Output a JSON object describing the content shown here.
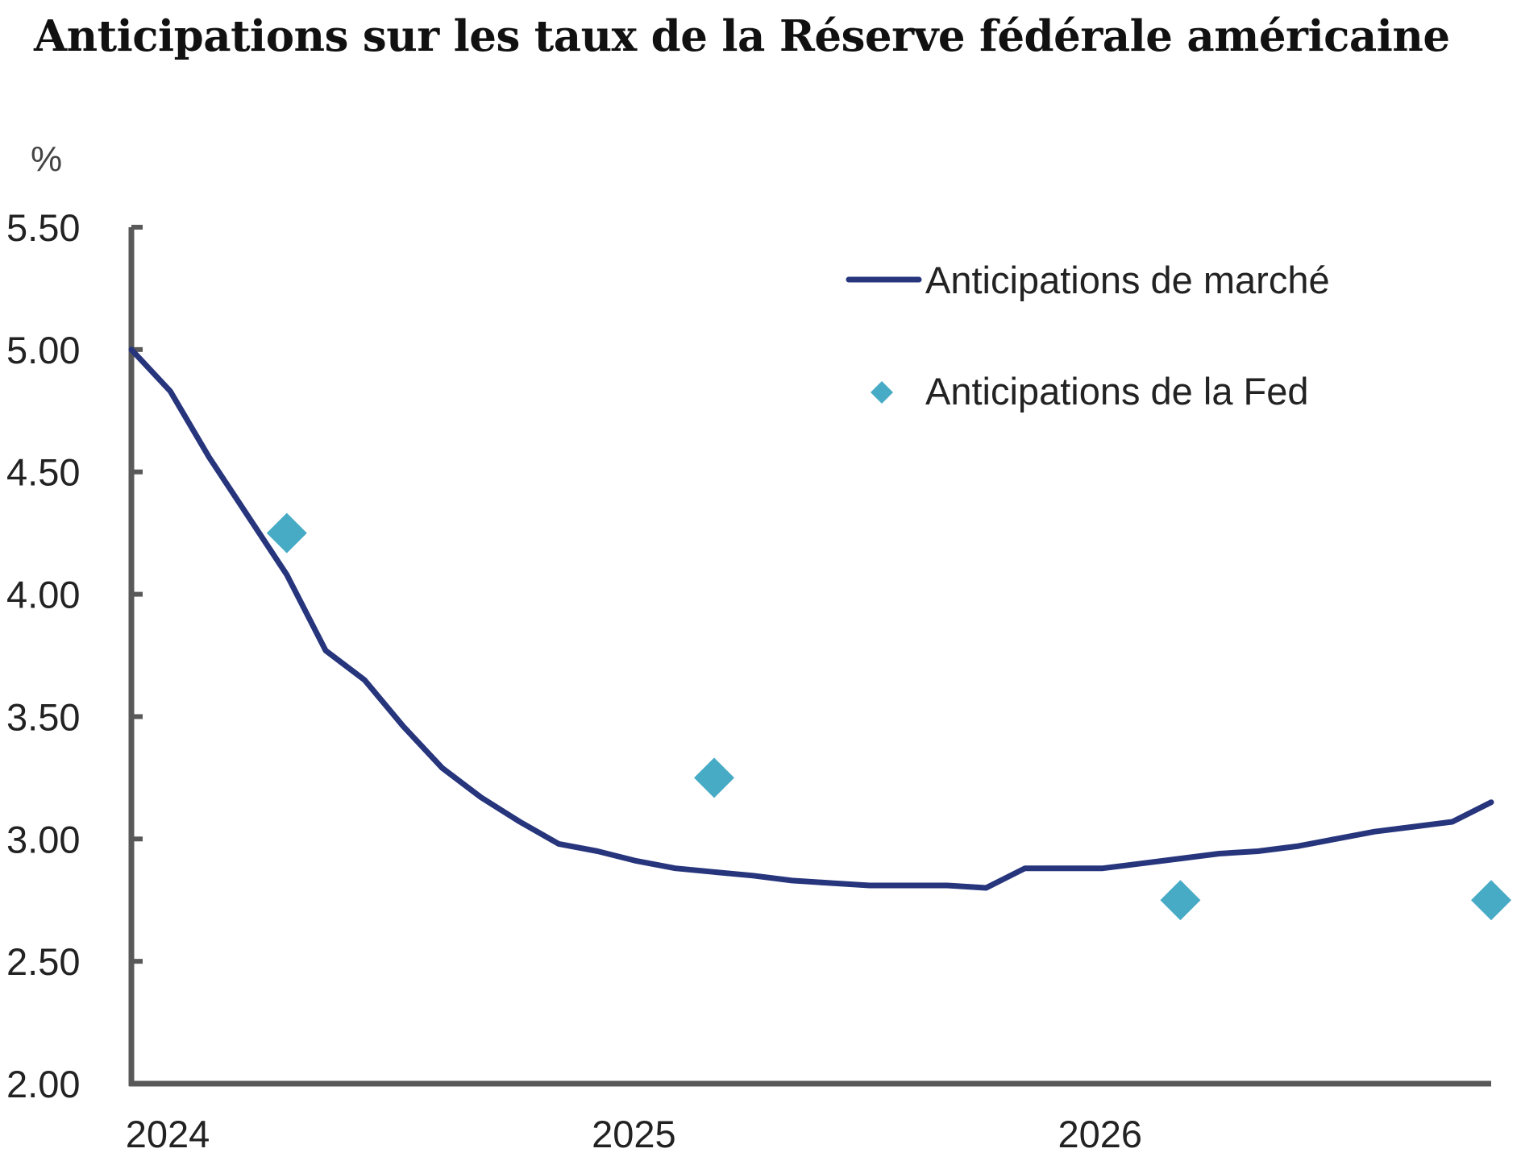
{
  "title": "Anticipations sur les taux de la Réserve fédérale américaine",
  "chart_data": {
    "type": "line",
    "title": "Anticipations sur les taux de la Réserve fédérale américaine",
    "ylabel": "%",
    "xlabel": "",
    "ylim": [
      2.0,
      5.5
    ],
    "yticks": [
      "2.00",
      "2.50",
      "3.00",
      "3.50",
      "4.00",
      "4.50",
      "5.00",
      "5.50"
    ],
    "xlim": [
      "2024-01",
      "2026-12"
    ],
    "xticks": [
      {
        "label": "2024",
        "x": "2024-01"
      },
      {
        "label": "2025",
        "x": "2025-01"
      },
      {
        "label": "2026",
        "x": "2026-01"
      }
    ],
    "grid": false,
    "legend_position": "top-right",
    "series": [
      {
        "name": "Anticipations de marché",
        "kind": "line",
        "color": "#26357c",
        "points": [
          {
            "x": "2024-01",
            "y": 5.0
          },
          {
            "x": "2024-02",
            "y": 4.83
          },
          {
            "x": "2024-03",
            "y": 4.56
          },
          {
            "x": "2024-04",
            "y": 4.32
          },
          {
            "x": "2024-05",
            "y": 4.08
          },
          {
            "x": "2024-06",
            "y": 3.77
          },
          {
            "x": "2024-07",
            "y": 3.65
          },
          {
            "x": "2024-08",
            "y": 3.46
          },
          {
            "x": "2024-09",
            "y": 3.29
          },
          {
            "x": "2024-10",
            "y": 3.17
          },
          {
            "x": "2024-11",
            "y": 3.07
          },
          {
            "x": "2024-12",
            "y": 2.98
          },
          {
            "x": "2025-01",
            "y": 2.95
          },
          {
            "x": "2025-02",
            "y": 2.91
          },
          {
            "x": "2025-03",
            "y": 2.88
          },
          {
            "x": "2025-04",
            "y": 2.865
          },
          {
            "x": "2025-05",
            "y": 2.85
          },
          {
            "x": "2025-06",
            "y": 2.83
          },
          {
            "x": "2025-07",
            "y": 2.82
          },
          {
            "x": "2025-08",
            "y": 2.81
          },
          {
            "x": "2025-09",
            "y": 2.81
          },
          {
            "x": "2025-10",
            "y": 2.81
          },
          {
            "x": "2025-11",
            "y": 2.8
          },
          {
            "x": "2025-12",
            "y": 2.88
          },
          {
            "x": "2026-01",
            "y": 2.88
          },
          {
            "x": "2026-02",
            "y": 2.88
          },
          {
            "x": "2026-03",
            "y": 2.9
          },
          {
            "x": "2026-04",
            "y": 2.92
          },
          {
            "x": "2026-05",
            "y": 2.94
          },
          {
            "x": "2026-06",
            "y": 2.95
          },
          {
            "x": "2026-07",
            "y": 2.97
          },
          {
            "x": "2026-08",
            "y": 3.0
          },
          {
            "x": "2026-09",
            "y": 3.03
          },
          {
            "x": "2026-10",
            "y": 3.05
          },
          {
            "x": "2026-11",
            "y": 3.07
          },
          {
            "x": "2026-12",
            "y": 3.15
          }
        ]
      },
      {
        "name": "Anticipations de la Fed",
        "kind": "scatter",
        "marker": "diamond",
        "color": "#48abc6",
        "points": [
          {
            "x": "2024-05",
            "y": 4.25
          },
          {
            "x": "2025-04",
            "y": 3.25
          },
          {
            "x": "2026-04",
            "y": 2.75
          },
          {
            "x": "2026-12",
            "y": 2.75
          }
        ]
      }
    ]
  }
}
